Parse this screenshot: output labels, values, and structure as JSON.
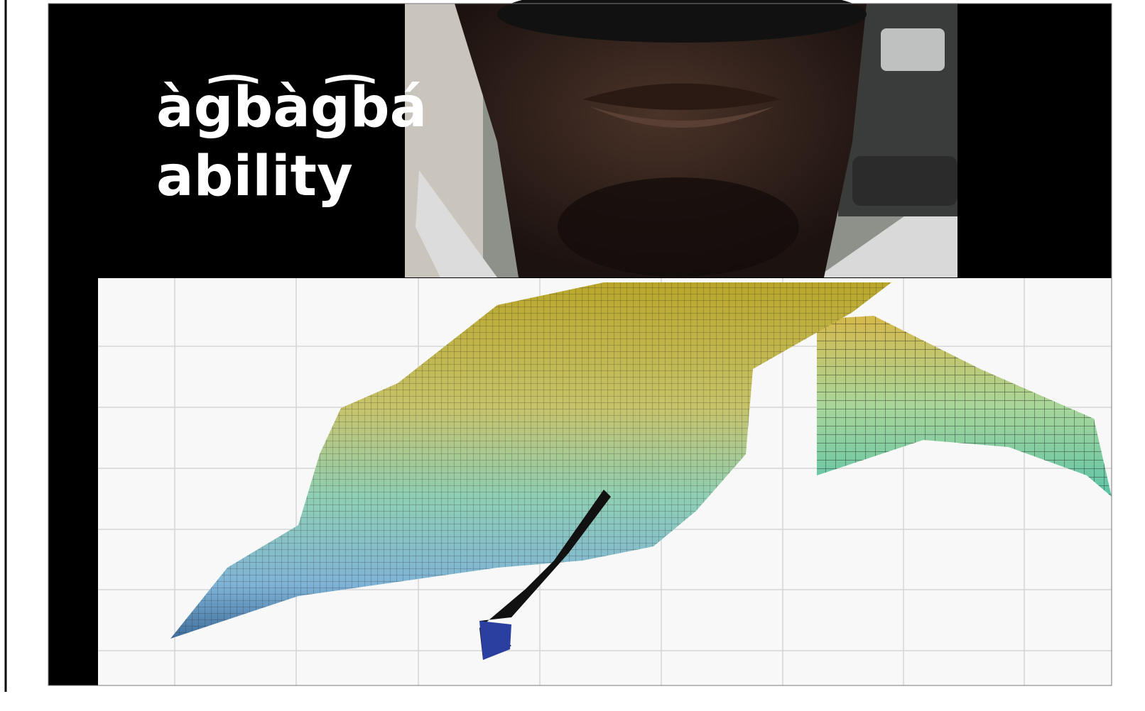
{
  "slide": {
    "title": "àg͡bàg͡bá",
    "subtitle": "ability"
  }
}
